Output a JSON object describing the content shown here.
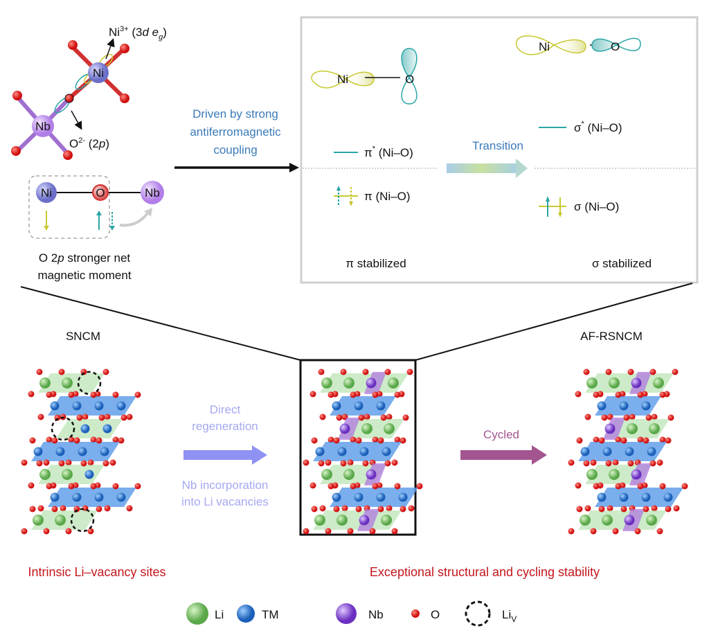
{
  "top_left": {
    "ni_label": "Ni",
    "ni_sup": "3+",
    "ni_orbital_open": " (3",
    "ni_orbital_d": "d",
    "ni_orbital_e": " e",
    "ni_orbital_g": "g",
    "ni_orbital_close": ")",
    "o_label": "O",
    "o_sup": "2-",
    "o_orbital_open": " (2",
    "o_orbital_p": "p",
    "o_orbital_close": ")",
    "nb_label": "Nb",
    "o_atom": "O",
    "chain": {
      "ni": "Ni",
      "o": "O",
      "nb": "Nb"
    },
    "caption_line1_a": "O 2",
    "caption_line1_p": "p",
    "caption_line1_b": " stronger net",
    "caption_line2": "magnetic moment"
  },
  "driver": {
    "line1": "Driven by strong",
    "line2": "antiferromagnetic",
    "line3": "coupling"
  },
  "orbital_box": {
    "left": {
      "ni": "Ni",
      "o": "O",
      "antibonding": "π",
      "antibonding_star": "*",
      "antibonding_suffix": " (Ni–O)",
      "bonding": "π (Ni–O)",
      "caption": "π stabilized"
    },
    "transition": "Transition",
    "right": {
      "ni": "Ni",
      "o": "O",
      "antibonding": "σ",
      "antibonding_star": "*",
      "antibonding_suffix": " (Ni–O)",
      "bonding": "σ (Ni–O)",
      "caption": "σ stabilized"
    }
  },
  "structures": {
    "left_label": "SNCM",
    "right_label": "AF-RSNCM",
    "regen_line1": "Direct",
    "regen_line2": "regeneration",
    "nb_line1": "Nb incorporation",
    "nb_line2": "into Li vacancies",
    "cycled": "Cycled"
  },
  "captions": {
    "left": "Intrinsic Li–vacancy sites",
    "right": "Exceptional structural and cycling stability"
  },
  "legend": [
    {
      "label": "Li",
      "color": "#7cc36a"
    },
    {
      "label": "TM",
      "color": "#2f7fd6"
    },
    {
      "label": "Nb",
      "color": "#8b4fd6"
    },
    {
      "label": "O",
      "color": "#e02020"
    },
    {
      "label": "Li",
      "sub": "V",
      "color": "#111111"
    }
  ],
  "colors": {
    "ni_orbital": "#c8c832",
    "o_orbital": "#2aa5a5",
    "caption_red": "#c4161c",
    "driver_blue": "#3b7ab8"
  }
}
